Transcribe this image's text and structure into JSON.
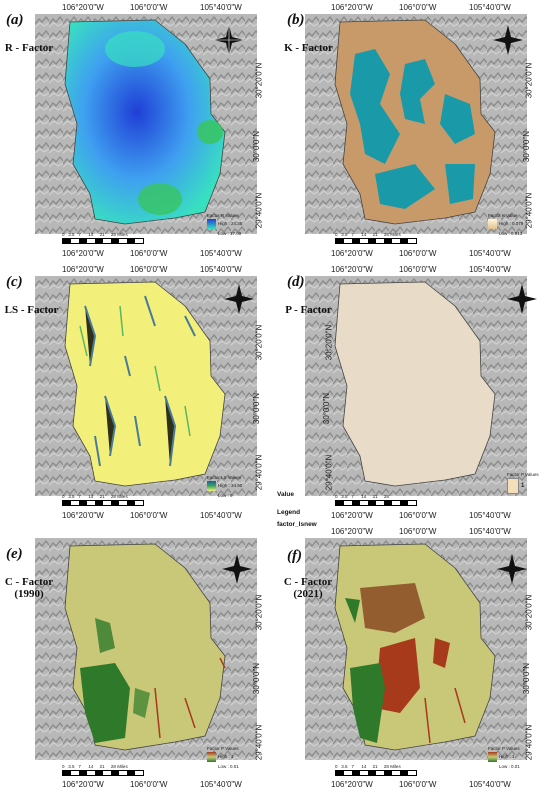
{
  "lon_labels": [
    "106°20'0\"W",
    "106°0'0\"W",
    "105°40'0\"W"
  ],
  "lat_labels": [
    "30°20'0\"N",
    "30°0'0\"N",
    "29°40'0\"N"
  ],
  "scale": {
    "ticks": [
      "0",
      "3.5",
      "7",
      "14",
      "21",
      "28"
    ],
    "unit": "Miles"
  },
  "north_icon": "compass-rose-icon",
  "panels": [
    {
      "label": "(a)",
      "title": "R - Factor",
      "legend_title": "Factor R Values",
      "legend_high": "High : 24.35",
      "legend_low": "Low : 17.09",
      "colors": [
        "#1f3fd6",
        "#3fa0f0",
        "#38e0c0",
        "#38c460"
      ]
    },
    {
      "label": "(b)",
      "title": "K - Factor",
      "legend_title": "Factor K Value",
      "legend_high": "High : 0.079",
      "legend_low": "Low : 0.013",
      "colors": [
        "#c89a6a",
        "#1a9aa8"
      ]
    },
    {
      "label": "(c)",
      "title": "LS - Factor",
      "legend_title": "Factor LS Values",
      "legend_high": "High : 34.90",
      "legend_low": "Low : 0",
      "colors": [
        "#f2f07a",
        "#1f5fa0",
        "#3aa65a"
      ]
    },
    {
      "label": "(d)",
      "title": "P - Factor",
      "legend_title": "Factor P Values",
      "legend_value": "1",
      "colors": [
        "#e8dcc8"
      ]
    },
    {
      "label": "(e)",
      "title": "C - Factor",
      "subtitle": "(1990)",
      "legend_title": "Factor P Values",
      "legend_high": "High : 1",
      "legend_low": "Low : 0.01",
      "colors": [
        "#c8c878",
        "#2f7a2a",
        "#a83a1c"
      ]
    },
    {
      "label": "(f)",
      "title": "C - Factor",
      "subtitle": "(2021)",
      "legend_title": "Factor P Values",
      "legend_high": "High : 1",
      "legend_low": "Low : 0.01",
      "colors": [
        "#c8c878",
        "#2f7a2a",
        "#a83a1c"
      ]
    }
  ],
  "side_legend": {
    "value_label": "Value",
    "legend_label": "Legend",
    "layer_label": "factor_lsnew"
  }
}
